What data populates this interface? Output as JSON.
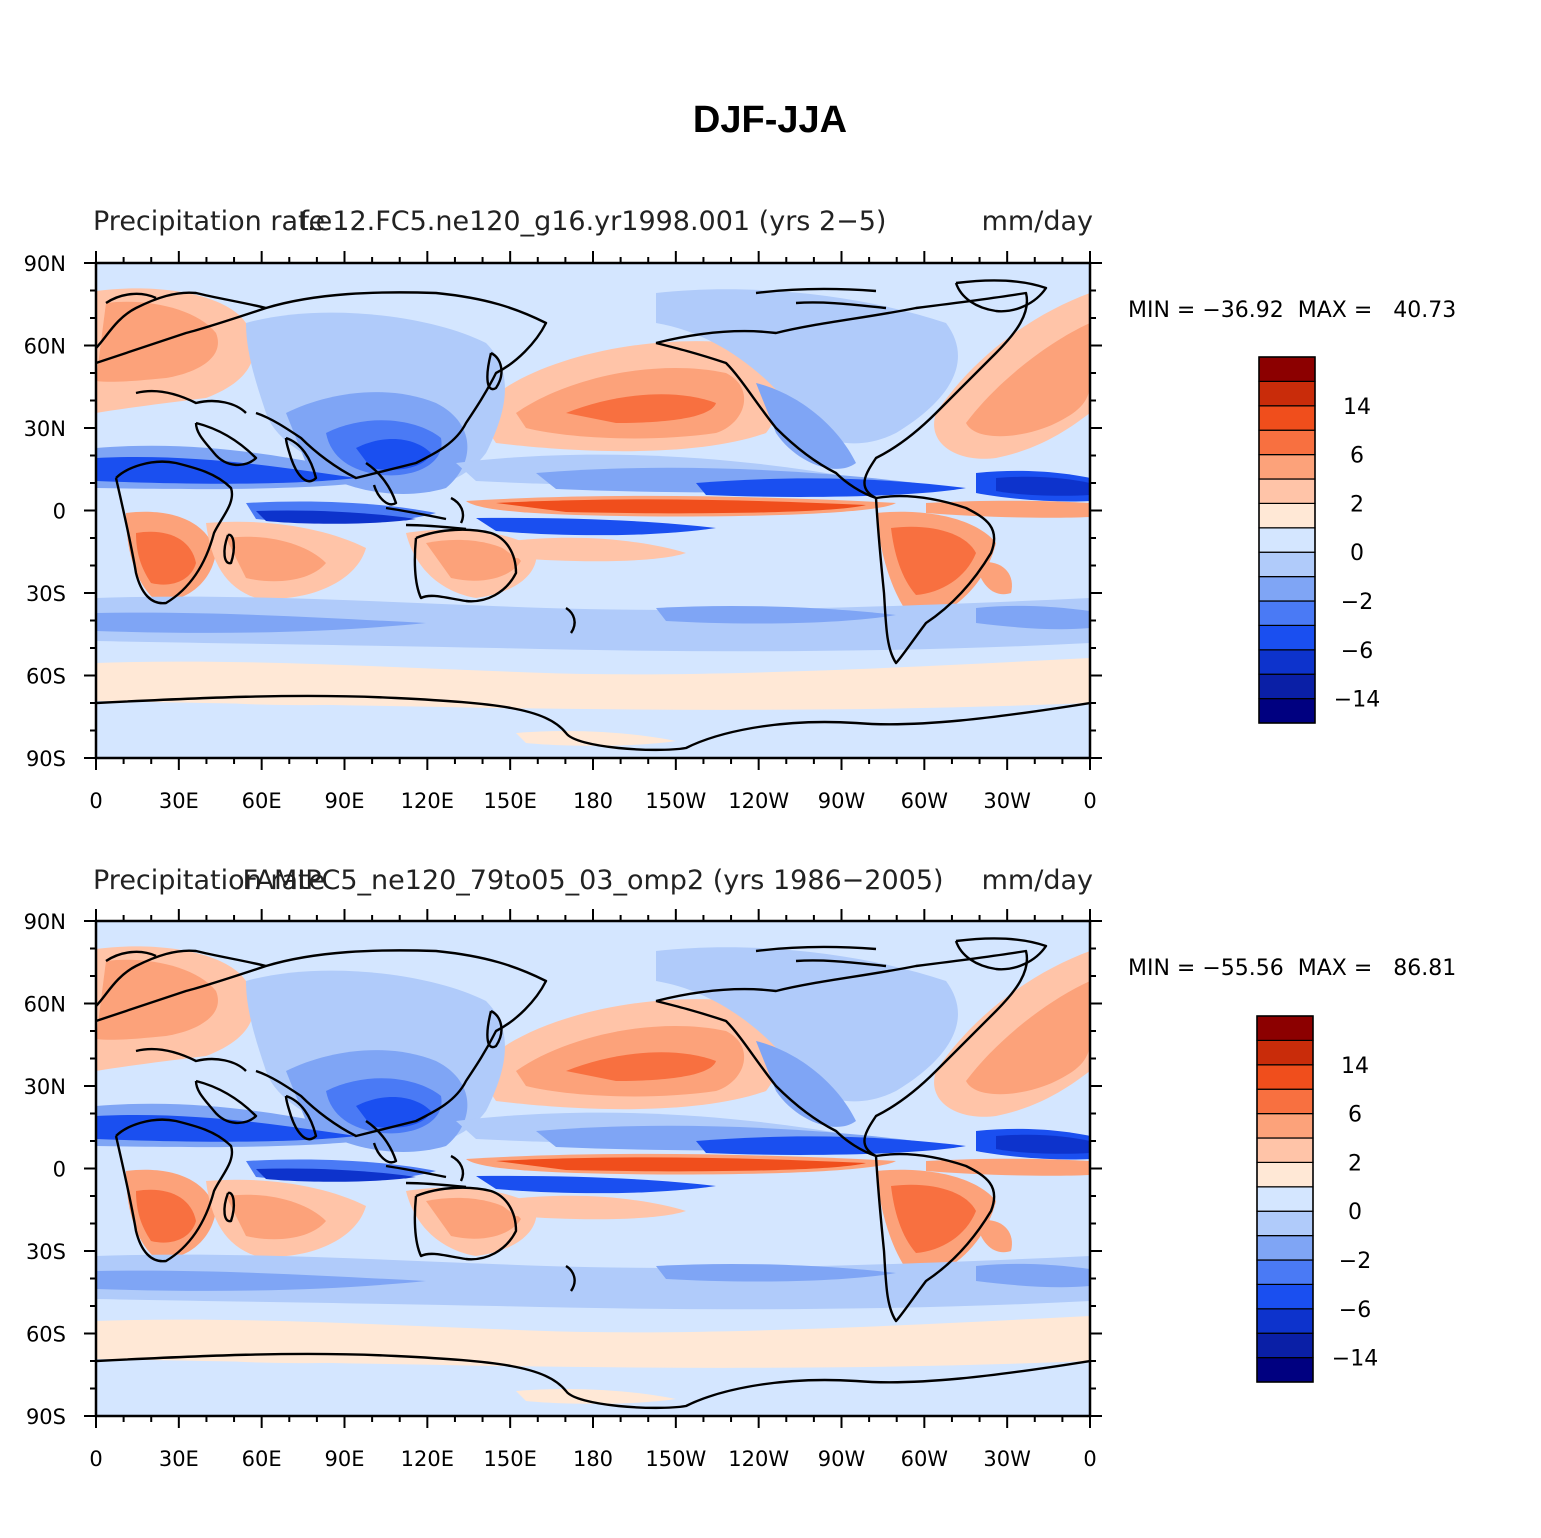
{
  "figure_title": "DJF-JJA",
  "colorbar": {
    "colors": [
      "#000080",
      "#0a1fa6",
      "#0d33cc",
      "#1a4ff0",
      "#4a7af5",
      "#7fa5f5",
      "#b0cbfa",
      "#d4e6ff",
      "#ffe8d6",
      "#ffc4a8",
      "#fca27a",
      "#f87040",
      "#f04e1c",
      "#c92c0a",
      "#8c0000"
    ],
    "labels": [
      {
        "text": "14",
        "slot": 11
      },
      {
        "text": "6",
        "slot": 9
      },
      {
        "text": "2",
        "slot": 7
      },
      {
        "text": "0",
        "slot": 5
      },
      {
        "text": "−2",
        "slot": 3
      },
      {
        "text": "−6",
        "slot": 1
      },
      {
        "text": "−14",
        "slot": -1
      }
    ]
  },
  "axes": {
    "x_ticks": [
      "0",
      "30E",
      "60E",
      "90E",
      "120E",
      "150E",
      "180",
      "150W",
      "120W",
      "90W",
      "60W",
      "30W",
      "0"
    ],
    "y_ticks": [
      "90N",
      "60N",
      "30N",
      "0",
      "30S",
      "60S",
      "90S"
    ]
  },
  "panels": [
    {
      "name": "top",
      "left_label": "Precipitation rate",
      "center_label": "f.e12.FC5.ne120_g16.yr1998.001 (yrs 2−5)",
      "right_label": "mm/day",
      "min_max": "MIN = −36.92  MAX =   40.73"
    },
    {
      "name": "bottom",
      "left_label": "Precipitation rate",
      "center_label": "FAMIPC5_ne120_79to05_03_omp2 (yrs 1986−2005)",
      "right_label": "mm/day",
      "min_max": "MIN = −55.56  MAX =   86.81"
    }
  ]
}
